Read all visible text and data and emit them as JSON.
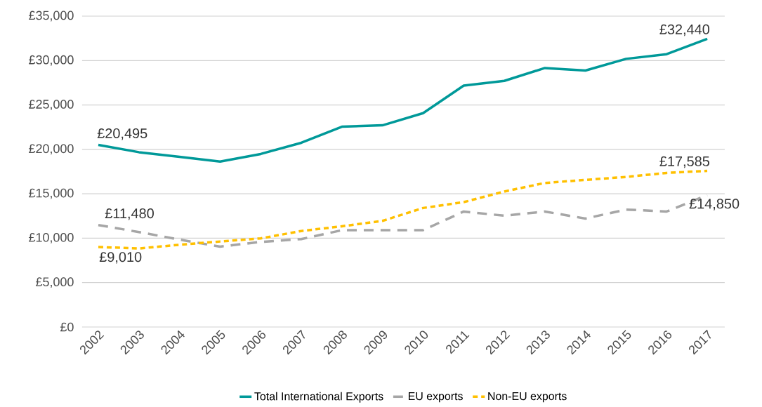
{
  "chart_data": {
    "type": "line",
    "categories": [
      "2002",
      "2003",
      "2004",
      "2005",
      "2006",
      "2007",
      "2008",
      "2009",
      "2010",
      "2011",
      "2012",
      "2013",
      "2014",
      "2015",
      "2016",
      "2017"
    ],
    "series": [
      {
        "name": "Total International Exports",
        "color": "#009999",
        "line_style": "solid",
        "values": [
          20495,
          19680,
          19160,
          18630,
          19480,
          20740,
          22550,
          22710,
          24080,
          27180,
          27710,
          29160,
          28880,
          30190,
          30720,
          32440
        ],
        "value_labels": [
          "£20,495",
          null,
          null,
          null,
          null,
          null,
          null,
          null,
          null,
          null,
          null,
          null,
          null,
          null,
          null,
          "£32,440"
        ]
      },
      {
        "name": "EU exports",
        "color": "#a6a6a6",
        "line_style": "dashed",
        "values": [
          11480,
          10690,
          9840,
          9050,
          9580,
          9900,
          10900,
          10900,
          10900,
          13000,
          12530,
          13000,
          12210,
          13220,
          13000,
          14850
        ],
        "value_labels": [
          "£11,480",
          null,
          null,
          null,
          null,
          null,
          null,
          null,
          null,
          null,
          null,
          null,
          null,
          null,
          null,
          "£14,850"
        ]
      },
      {
        "name": "Non-EU exports",
        "color": "#ffc000",
        "line_style": "dashed",
        "values": [
          9010,
          8840,
          9260,
          9630,
          9975,
          10810,
          11340,
          11950,
          13400,
          14060,
          15250,
          16220,
          16560,
          16900,
          17350,
          17585
        ],
        "value_labels": [
          "£9,010",
          null,
          null,
          null,
          null,
          null,
          null,
          null,
          null,
          null,
          null,
          null,
          null,
          null,
          null,
          "£17,585"
        ]
      }
    ],
    "ylim": [
      0,
      35000
    ],
    "yticks": [
      {
        "value": 0,
        "label": "£0"
      },
      {
        "value": 5000,
        "label": "£5,000"
      },
      {
        "value": 10000,
        "label": "£10,000"
      },
      {
        "value": 15000,
        "label": "£15,000"
      },
      {
        "value": 20000,
        "label": "£20,000"
      },
      {
        "value": 25000,
        "label": "£25,000"
      },
      {
        "value": 30000,
        "label": "£30,000"
      },
      {
        "value": 35000,
        "label": "£35,000"
      }
    ],
    "grid": "y",
    "legend": "bottom",
    "marker": "none"
  }
}
